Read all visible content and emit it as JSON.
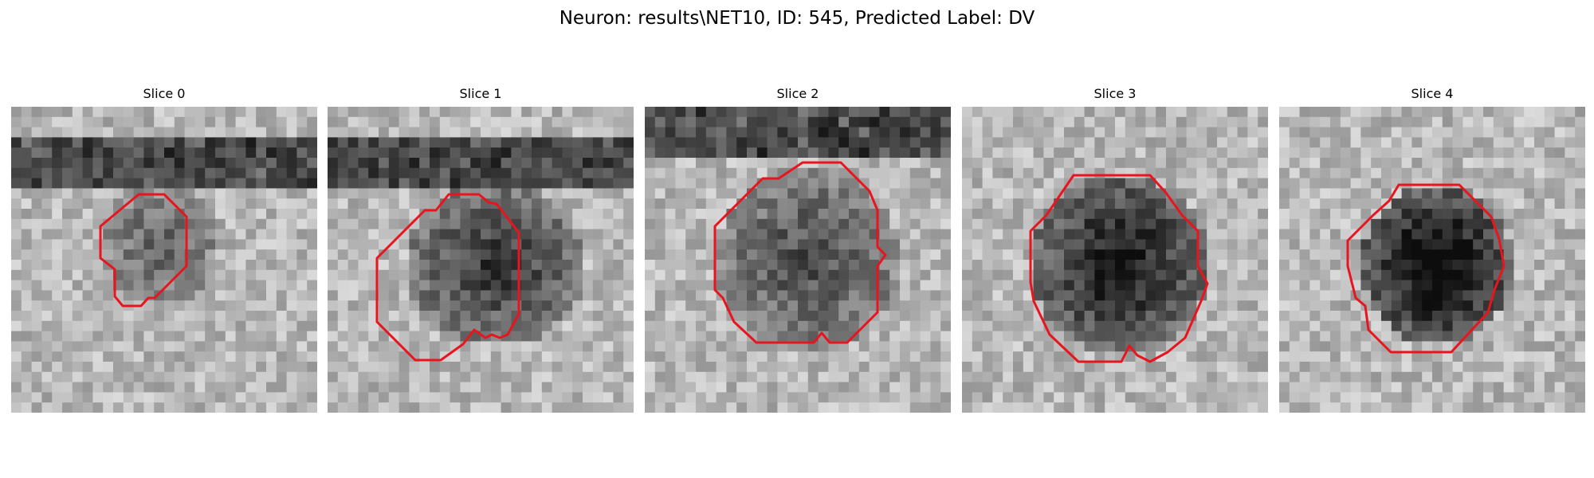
{
  "figure": {
    "title": "Neuron: results\\NET10, ID: 545, Predicted Label: DV"
  },
  "slices": [
    {
      "title": "Slice 0"
    },
    {
      "title": "Slice 1"
    },
    {
      "title": "Slice 2"
    },
    {
      "title": "Slice 3"
    },
    {
      "title": "Slice 4"
    }
  ],
  "colors": {
    "contour": "#e8141e",
    "background": "#ffffff"
  }
}
